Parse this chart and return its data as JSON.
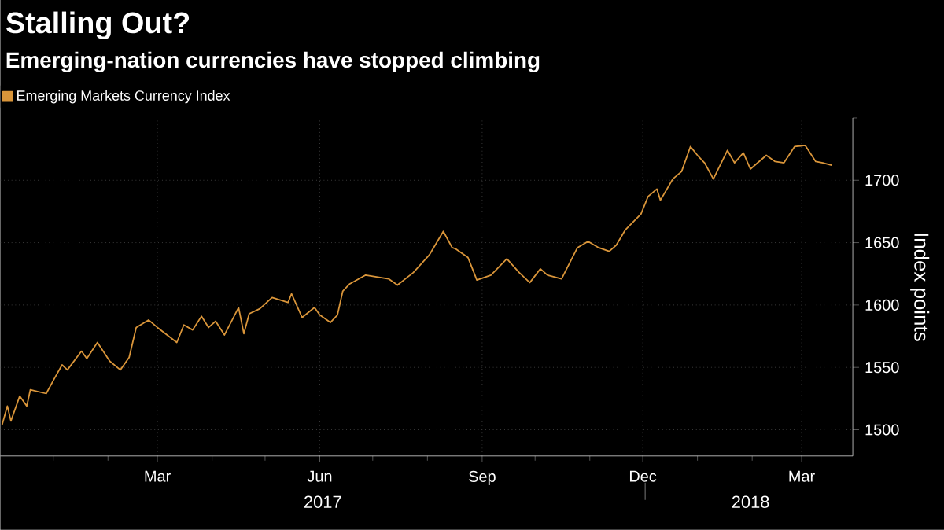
{
  "chart_data": {
    "type": "line",
    "title": "Stalling Out?",
    "subtitle": "Emerging-nation currencies have stopped climbing",
    "ylabel": "Index points",
    "annotations": [
      "2017",
      "2018"
    ],
    "x": [
      "2016-12-03",
      "2016-12-06",
      "2016-12-08",
      "2016-12-13",
      "2016-12-17",
      "2016-12-19",
      "2016-12-28",
      "2017-01-02",
      "2017-01-06",
      "2017-01-09",
      "2017-01-17",
      "2017-01-20",
      "2017-01-26",
      "2017-02-02",
      "2017-02-08",
      "2017-02-13",
      "2017-02-17",
      "2017-02-24",
      "2017-03-01",
      "2017-03-12",
      "2017-03-16",
      "2017-03-21",
      "2017-03-26",
      "2017-03-30",
      "2017-04-03",
      "2017-04-08",
      "2017-04-16",
      "2017-04-19",
      "2017-04-22",
      "2017-04-28",
      "2017-05-05",
      "2017-05-14",
      "2017-05-16",
      "2017-05-22",
      "2017-05-29",
      "2017-06-01",
      "2017-06-07",
      "2017-06-11",
      "2017-06-14",
      "2017-06-18",
      "2017-06-27",
      "2017-07-10",
      "2017-07-15",
      "2017-07-24",
      "2017-08-02",
      "2017-08-10",
      "2017-08-15",
      "2017-08-17",
      "2017-08-24",
      "2017-08-29",
      "2017-09-06",
      "2017-09-15",
      "2017-09-22",
      "2017-09-28",
      "2017-10-04",
      "2017-10-08",
      "2017-10-16",
      "2017-10-25",
      "2017-10-31",
      "2017-11-06",
      "2017-11-12",
      "2017-11-16",
      "2017-11-21",
      "2017-11-30",
      "2017-12-04",
      "2017-12-09",
      "2017-12-11",
      "2017-12-18",
      "2017-12-23",
      "2017-12-28",
      "2018-01-01",
      "2018-01-05",
      "2018-01-10",
      "2018-01-18",
      "2018-01-22",
      "2018-01-27",
      "2018-01-31",
      "2018-02-09",
      "2018-02-14",
      "2018-02-19",
      "2018-02-25",
      "2018-03-03",
      "2018-03-09",
      "2018-03-13",
      "2018-03-18"
    ],
    "series": [
      {
        "name": "Emerging Markets Currency Index",
        "color": "#d9953a",
        "values": [
          1504,
          1519,
          1507,
          1527,
          1519,
          1532,
          1529,
          1542,
          1552,
          1548,
          1563,
          1557,
          1570,
          1555,
          1548,
          1558,
          1582,
          1588,
          1582,
          1570,
          1584,
          1580,
          1591,
          1582,
          1587,
          1576,
          1598,
          1577,
          1593,
          1597,
          1606,
          1602,
          1609,
          1590,
          1598,
          1592,
          1586,
          1592,
          1611,
          1617,
          1624,
          1621,
          1616,
          1626,
          1640,
          1659,
          1646,
          1645,
          1638,
          1620,
          1624,
          1637,
          1626,
          1618,
          1629,
          1624,
          1621,
          1646,
          1651,
          1646,
          1643,
          1648,
          1660,
          1673,
          1687,
          1693,
          1684,
          1701,
          1707,
          1727,
          1720,
          1714,
          1701,
          1724,
          1714,
          1722,
          1709,
          1720,
          1715,
          1714,
          1727,
          1728,
          1715,
          1714,
          1712
        ]
      }
    ],
    "xlim": [
      "2016-12-02",
      "2018-03-30"
    ],
    "xticks": [
      {
        "value": "2017-01-01",
        "label": null
      },
      {
        "value": "2017-02-01",
        "label": null
      },
      {
        "value": "2017-03-01",
        "label": "Mar"
      },
      {
        "value": "2017-04-01",
        "label": null
      },
      {
        "value": "2017-05-01",
        "label": null
      },
      {
        "value": "2017-06-01",
        "label": "Jun"
      },
      {
        "value": "2017-07-01",
        "label": null
      },
      {
        "value": "2017-08-01",
        "label": null
      },
      {
        "value": "2017-09-01",
        "label": "Sep"
      },
      {
        "value": "2017-10-01",
        "label": null
      },
      {
        "value": "2017-11-01",
        "label": null
      },
      {
        "value": "2017-12-01",
        "label": "Dec"
      },
      {
        "value": "2018-01-01",
        "label": null
      },
      {
        "value": "2018-02-01",
        "label": null
      },
      {
        "value": "2018-03-01",
        "label": "Mar"
      }
    ],
    "ylim": [
      1479,
      1750
    ],
    "yticks": [
      1500,
      1550,
      1600,
      1650,
      1700,
      {
        "value": 1750,
        "label": null
      }
    ],
    "grid": true,
    "legend": "top left"
  }
}
